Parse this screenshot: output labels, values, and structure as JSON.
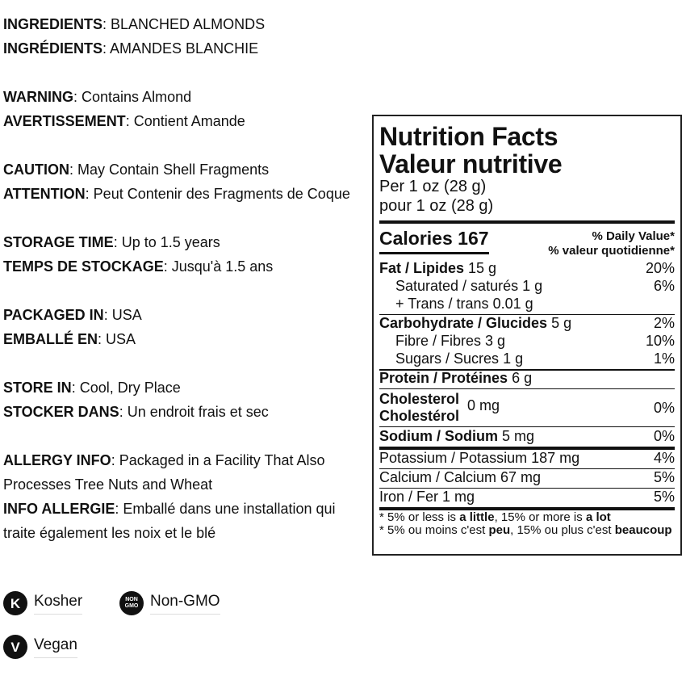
{
  "info": [
    {
      "label": "INGREDIENTS",
      "text": "BLANCHED ALMONDS"
    },
    {
      "label": "INGRÉDIENTS",
      "text": "AMANDES BLANCHIE"
    },
    null,
    {
      "label": "WARNING",
      "text": "Contains Almond"
    },
    {
      "label": "AVERTISSEMENT",
      "text": "Contient Amande"
    },
    null,
    {
      "label": "CAUTION",
      "text": "May Contain Shell Fragments"
    },
    {
      "label": "ATTENTION",
      "text": "Peut Contenir des Fragments de Coque"
    },
    null,
    {
      "label": "STORAGE TIME",
      "text": "Up to 1.5 years"
    },
    {
      "label": "TEMPS DE STOCKAGE",
      "text": "Jusqu'à 1.5 ans"
    },
    null,
    {
      "label": "PACKAGED IN",
      "text": "USA"
    },
    {
      "label": "EMBALLÉ EN",
      "text": "USA"
    },
    null,
    {
      "label": "STORE IN",
      "text": "Cool, Dry Place"
    },
    {
      "label": "STOCKER DANS",
      "text": "Un endroit frais et sec"
    },
    null,
    {
      "label": "ALLERGY INFO",
      "text": "Packaged in a Facility That Also Processes Tree Nuts and Wheat"
    },
    {
      "label": "INFO ALLERGIE",
      "text": "Emballé dans une installation qui traite également les noix et le blé"
    }
  ],
  "badges": [
    {
      "icon": "kosher-icon",
      "glyph": "K",
      "label": "Kosher"
    },
    {
      "icon": "non-gmo-icon",
      "glyph": "NON GMO",
      "label": "Non-GMO"
    },
    {
      "icon": "vegan-icon",
      "glyph": "V",
      "label": "Vegan"
    }
  ],
  "nutrition": {
    "title_en": "Nutrition Facts",
    "title_fr": "Valeur nutritive",
    "serving_en": "Per 1 oz (28 g)",
    "serving_fr": "pour 1 oz (28 g)",
    "calories_label": "Calories",
    "calories": "167",
    "dv_en": "% Daily Value*",
    "dv_fr": "% valeur quotidienne*",
    "fat": {
      "label": "Fat / Lipides",
      "amount": "15 g",
      "dv": "20%"
    },
    "saturated": {
      "label": "Saturated / saturés",
      "amount": "1 g",
      "dv": "6%"
    },
    "trans": {
      "label": "+ Trans / trans",
      "amount": "0.01 g"
    },
    "carb": {
      "label": "Carbohydrate / Glucides",
      "amount": "5 g",
      "dv": "2%"
    },
    "fibre": {
      "label": "Fibre / Fibres",
      "amount": "3 g",
      "dv": "10%"
    },
    "sugars": {
      "label": "Sugars / Sucres",
      "amount": "1 g",
      "dv": "1%"
    },
    "protein": {
      "label": "Protein / Protéines",
      "amount": "6 g"
    },
    "cholesterol": {
      "label_en": "Cholesterol",
      "label_fr": "Cholestérol",
      "amount": "0 mg",
      "dv": "0%"
    },
    "sodium": {
      "label": "Sodium / Sodium",
      "amount": "5 mg",
      "dv": "0%"
    },
    "potassium": {
      "label": "Potassium / Potassium 187 mg",
      "dv": "4%"
    },
    "calcium": {
      "label": "Calcium / Calcium 67 mg",
      "dv": "5%"
    },
    "iron": {
      "label": "Iron / Fer 1 mg",
      "dv": "5%"
    },
    "foot_en": {
      "a": "* 5% or less is ",
      "b": "a little",
      "c": ", 15% or more is ",
      "d": "a lot"
    },
    "foot_fr": {
      "a": "* 5% ou moins c'est ",
      "b": "peu",
      "c": ", 15% ou plus c'est ",
      "d": "beaucoup"
    }
  }
}
